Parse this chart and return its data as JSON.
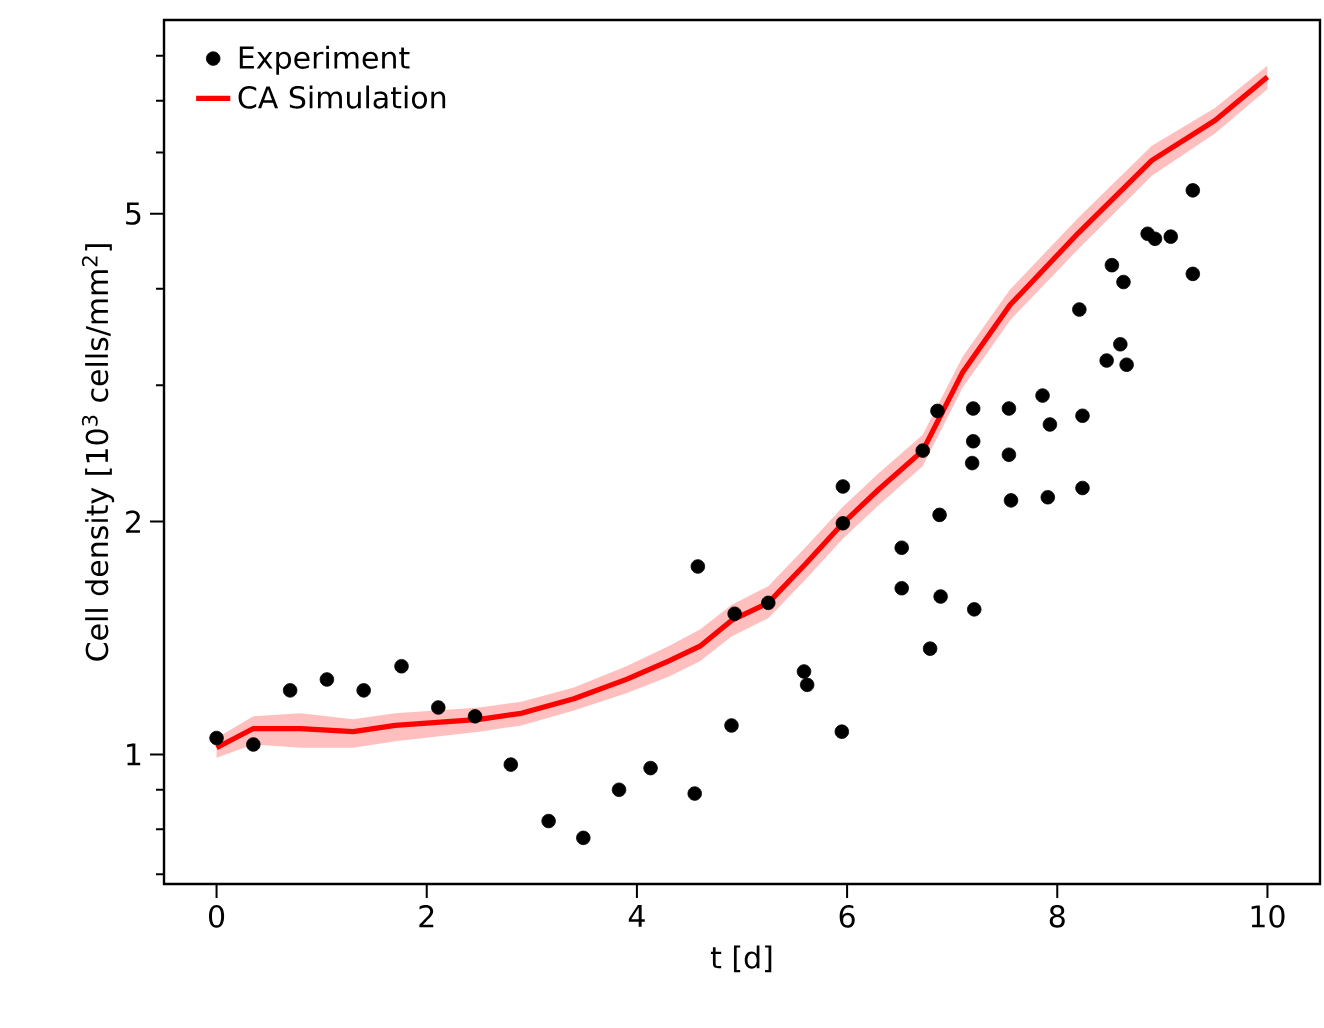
{
  "chart_data": {
    "type": "scatter",
    "xlabel": "t [d]",
    "ylabel": "Cell density [10$^{3}$ cells/mm$^{2}$]",
    "log": "y",
    "xlim": [
      -0.5,
      10.5
    ],
    "xticks": [
      0,
      2,
      4,
      6,
      8,
      10
    ],
    "ylim": [
      0.68,
      8.9
    ],
    "yticks": [
      {
        "value": 0.7,
        "label": null
      },
      {
        "value": 0.8,
        "label": null
      },
      {
        "value": 0.9,
        "label": null
      },
      1,
      2,
      {
        "value": 3,
        "label": null
      },
      {
        "value": 4,
        "label": null
      },
      5,
      {
        "value": 6,
        "label": null
      },
      {
        "value": 7,
        "label": null
      },
      {
        "value": 8,
        "label": null
      }
    ],
    "legend": "top left",
    "grid": false,
    "series": [
      {
        "name": "Experiment",
        "marker": "circle",
        "color": "#000000",
        "x": [
          0.0,
          0.35,
          0.7,
          1.05,
          1.4,
          1.76,
          2.11,
          2.46,
          2.8,
          3.16,
          3.49,
          3.83,
          4.13,
          4.55,
          4.58,
          4.93,
          4.9,
          5.25,
          5.59,
          5.62,
          5.96,
          5.96,
          5.95,
          6.52,
          6.52,
          6.79,
          6.89,
          6.88,
          6.72,
          6.86,
          7.2,
          7.2,
          7.19,
          7.21,
          7.54,
          7.54,
          7.56,
          7.86,
          7.93,
          7.91,
          8.24,
          8.24,
          8.21,
          8.47,
          8.6,
          8.66,
          8.52,
          8.63,
          8.86,
          8.93,
          9.08,
          9.29,
          9.29
        ],
        "values": [
          1.05,
          1.03,
          1.21,
          1.25,
          1.21,
          1.3,
          1.15,
          1.12,
          0.97,
          0.82,
          0.78,
          0.9,
          0.96,
          0.89,
          1.75,
          1.52,
          1.09,
          1.57,
          1.28,
          1.23,
          2.22,
          1.99,
          1.07,
          1.85,
          1.64,
          1.37,
          1.6,
          2.04,
          2.47,
          2.78,
          2.8,
          2.54,
          2.38,
          1.54,
          2.8,
          2.44,
          2.13,
          2.91,
          2.67,
          2.15,
          2.74,
          2.21,
          3.76,
          3.23,
          3.39,
          3.19,
          4.29,
          4.08,
          4.71,
          4.64,
          4.67,
          5.36,
          4.18
        ]
      },
      {
        "name": "CA Simulation",
        "type": "line",
        "marker": "none",
        "line_style": "solid",
        "color": "#ff0000",
        "x": [
          0,
          0.35,
          0.8,
          1.3,
          1.7,
          2.5,
          2.9,
          3.4,
          3.9,
          4.3,
          4.6,
          4.9,
          5.25,
          5.6,
          5.96,
          6.3,
          6.72,
          7.1,
          7.55,
          8.2,
          8.9,
          9.5,
          10
        ],
        "values": [
          1.02,
          1.08,
          1.08,
          1.07,
          1.09,
          1.11,
          1.13,
          1.18,
          1.25,
          1.32,
          1.38,
          1.49,
          1.57,
          1.76,
          1.99,
          2.2,
          2.47,
          3.12,
          3.81,
          4.72,
          5.86,
          6.6,
          7.51
        ],
        "lower": [
          0.99,
          1.03,
          1.02,
          1.02,
          1.04,
          1.07,
          1.09,
          1.14,
          1.2,
          1.26,
          1.32,
          1.42,
          1.5,
          1.68,
          1.9,
          2.1,
          2.36,
          2.98,
          3.64,
          4.5,
          5.6,
          6.35,
          7.25
        ],
        "upper": [
          1.05,
          1.12,
          1.13,
          1.11,
          1.13,
          1.15,
          1.17,
          1.22,
          1.3,
          1.38,
          1.45,
          1.56,
          1.65,
          1.85,
          2.09,
          2.31,
          2.59,
          3.27,
          3.99,
          4.94,
          6.12,
          6.85,
          7.77
        ]
      }
    ]
  }
}
